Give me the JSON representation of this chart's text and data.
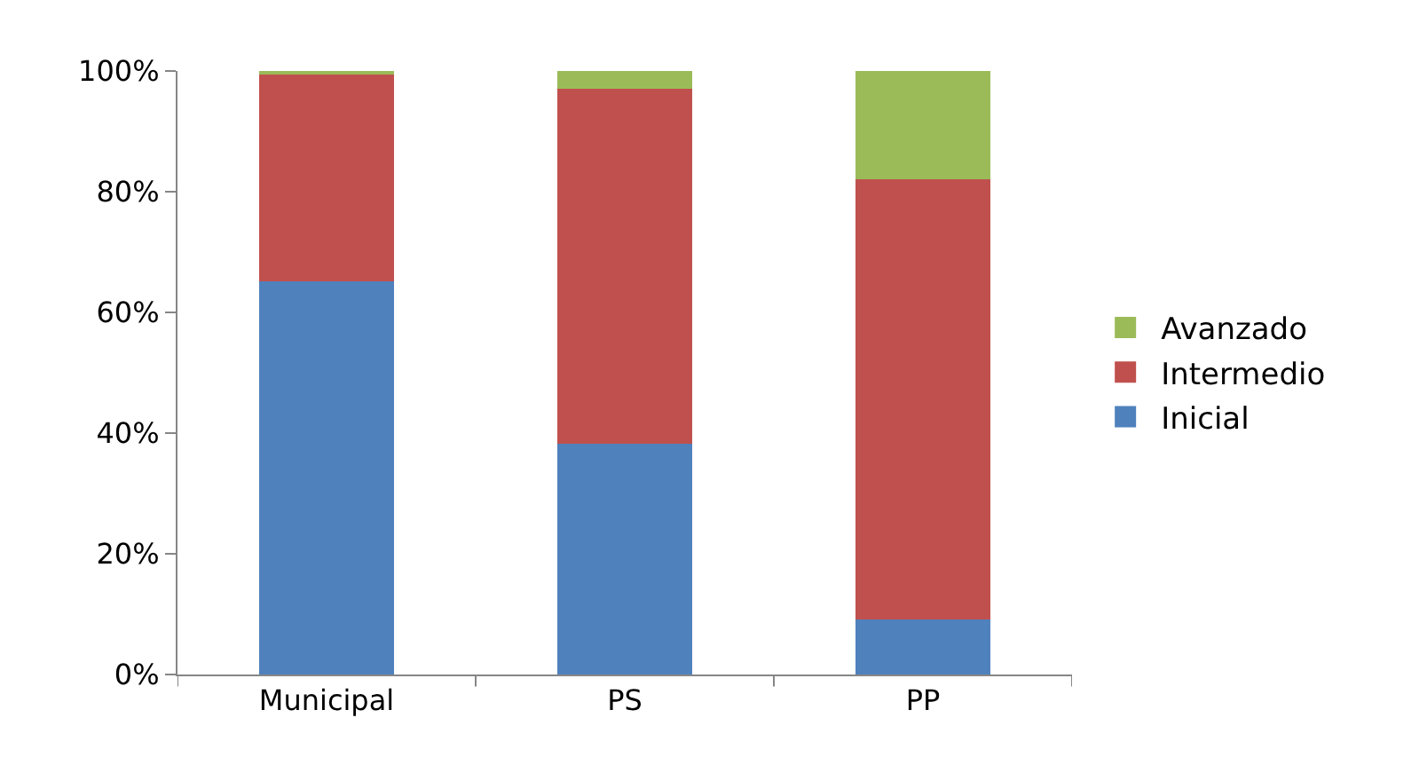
{
  "chart_data": {
    "type": "bar",
    "stacked": true,
    "categories": [
      "Municipal",
      "PS",
      "PP"
    ],
    "series": [
      {
        "name": "Inicial",
        "color": "#4f81bd",
        "values": [
          65.2,
          38.3,
          9.1
        ]
      },
      {
        "name": "Intermedio",
        "color": "#c0504d",
        "values": [
          34.2,
          58.8,
          72.9
        ]
      },
      {
        "name": "Avanzado",
        "color": "#9bbb59",
        "values": [
          0.6,
          2.9,
          18.0
        ]
      }
    ],
    "ylim": [
      0,
      100
    ],
    "yticks": [
      {
        "value": 0,
        "label": "0%"
      },
      {
        "value": 20,
        "label": "20%"
      },
      {
        "value": 40,
        "label": "40%"
      },
      {
        "value": 60,
        "label": "60%"
      },
      {
        "value": 80,
        "label": "80%"
      },
      {
        "value": 100,
        "label": "100%"
      }
    ],
    "legend": "right"
  }
}
